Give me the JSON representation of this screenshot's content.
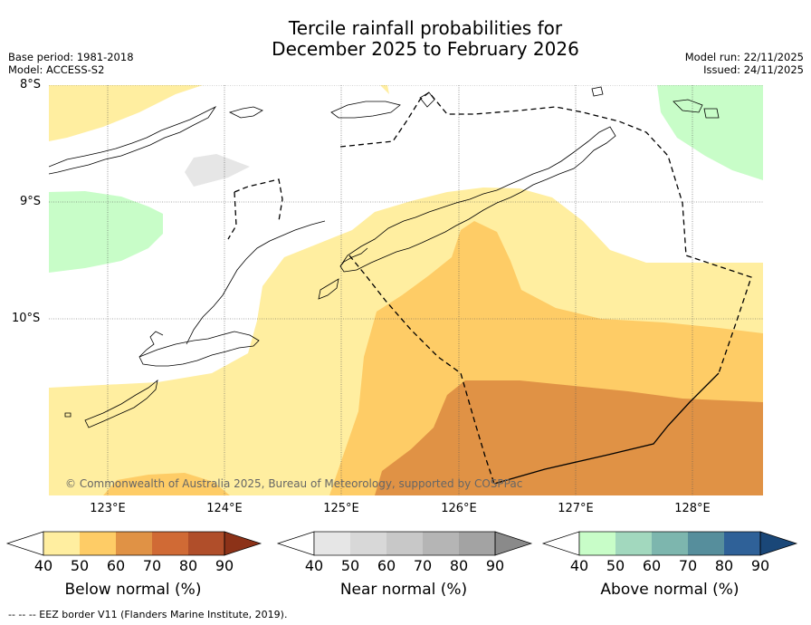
{
  "title": {
    "line1": "Tercile rainfall probabilities for",
    "line2": "December 2025 to February 2026"
  },
  "meta": {
    "base_period": "Base period: 1981-2018",
    "model": "Model: ACCESS-S2",
    "model_run": "Model run: 22/11/2025",
    "issued": "Issued: 24/11/2025"
  },
  "map": {
    "lat_labels": [
      "8°S",
      "9°S",
      "10°S"
    ],
    "lon_labels": [
      "123°E",
      "124°E",
      "125°E",
      "126°E",
      "127°E",
      "128°E"
    ],
    "copyright": "© Commonwealth of Australia 2025, Bureau of Meteorology, supported by COSPPac"
  },
  "legend": {
    "ticks": [
      "40",
      "50",
      "60",
      "70",
      "80",
      "90"
    ],
    "below": {
      "label": "Below normal (%)",
      "colors": [
        "#FFEEA0",
        "#FECC66",
        "#E09245",
        "#D06A35",
        "#B04E2A"
      ],
      "arrow_color": "#8C3218"
    },
    "near": {
      "label": "Near normal (%)",
      "colors": [
        "#E6E6E6",
        "#D8D8D8",
        "#C8C8C8",
        "#B5B5B5",
        "#A3A3A3"
      ],
      "arrow_color": "#8A8A8A"
    },
    "above": {
      "label": "Above normal (%)",
      "colors": [
        "#C8FDC8",
        "#A2D8BE",
        "#7DB6AE",
        "#568E9C",
        "#2F6198"
      ],
      "arrow_color": "#1A4778"
    }
  },
  "footer": "--  --  -- EEZ border V11 (Flanders Marine Institute, 2019).",
  "colors": {
    "below_50": "#FFEEA0",
    "below_60": "#FECC66",
    "below_70": "#E09245",
    "above_50": "#C8FDC8",
    "near_50": "#E6E6E6"
  }
}
